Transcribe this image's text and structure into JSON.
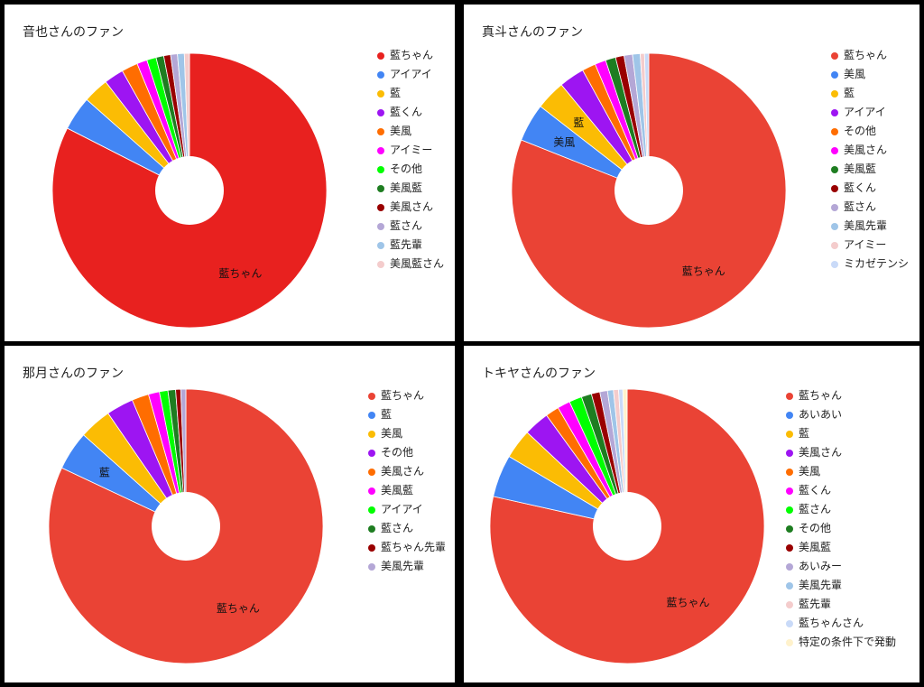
{
  "chart_data": [
    {
      "type": "pie",
      "title": "音也さんのファン",
      "categories": [
        "藍ちゃん",
        "アイアイ",
        "藍",
        "藍くん",
        "美風",
        "アイミー",
        "その他",
        "美風藍",
        "美風さん",
        "藍さん",
        "藍先輩",
        "美風藍さん"
      ],
      "values": [
        82.0,
        4.0,
        3.0,
        2.3,
        1.9,
        1.2,
        1.1,
        0.9,
        0.8,
        0.8,
        0.8,
        0.6
      ],
      "colors": [
        "#e8211f",
        "#4285f4",
        "#fbbc04",
        "#9d15f2",
        "#ff6d01",
        "#ff00ff",
        "#00ff00",
        "#1e7d21",
        "#990000",
        "#b4a7d6",
        "#9fc5e8",
        "#f4cccc"
      ],
      "slice_labels": [
        "藍ちゃん",
        "",
        "",
        "",
        "",
        "",
        "",
        "",
        "",
        "",
        "",
        ""
      ],
      "donut": true,
      "legend_position": "right"
    },
    {
      "type": "pie",
      "title": "真斗さんのファン",
      "categories": [
        "藍ちゃん",
        "美風",
        "藍",
        "アイアイ",
        "その他",
        "美風さん",
        "美風藍",
        "藍くん",
        "藍さん",
        "美風先輩",
        "アイミー",
        "ミカゼテンシ"
      ],
      "values": [
        81.0,
        4.5,
        3.5,
        3.0,
        1.6,
        1.3,
        1.2,
        1.0,
        1.0,
        0.9,
        0.5,
        0.5
      ],
      "colors": [
        "#ea4335",
        "#4285f4",
        "#fbbc04",
        "#9d15f2",
        "#ff6d01",
        "#ff00ff",
        "#1e7d21",
        "#990000",
        "#b4a7d6",
        "#9fc5e8",
        "#f4cccc",
        "#c9daf8"
      ],
      "slice_labels": [
        "藍ちゃん",
        "美風",
        "藍",
        "",
        "",
        "",
        "",
        "",
        "",
        "",
        "",
        ""
      ],
      "donut": true,
      "legend_position": "right"
    },
    {
      "type": "pie",
      "title": "那月さんのファン",
      "categories": [
        "藍ちゃん",
        "藍",
        "美風",
        "その他",
        "美風さん",
        "美風藍",
        "アイアイ",
        "藍さん",
        "藍ちゃん先輩",
        "美風先輩"
      ],
      "values": [
        82.0,
        4.6,
        3.8,
        3.2,
        2.0,
        1.3,
        1.0,
        0.9,
        0.6,
        0.6
      ],
      "colors": [
        "#ea4335",
        "#4285f4",
        "#fbbc04",
        "#9d15f2",
        "#ff6d01",
        "#ff00ff",
        "#00ff00",
        "#1e7d21",
        "#990000",
        "#b4a7d6"
      ],
      "slice_labels": [
        "藍ちゃん",
        "藍",
        "",
        "",
        "",
        "",
        "",
        "",
        "",
        ""
      ],
      "donut": true,
      "legend_position": "right"
    },
    {
      "type": "pie",
      "title": "トキヤさんのファン",
      "categories": [
        "藍ちゃん",
        "あいあい",
        "藍",
        "美風さん",
        "美風",
        "藍くん",
        "藍さん",
        "その他",
        "美風藍",
        "あいみー",
        "美風先輩",
        "藍先輩",
        "藍ちゃんさん",
        "特定の条件下で発動"
      ],
      "values": [
        78.5,
        5.0,
        3.5,
        3.0,
        1.6,
        1.5,
        1.5,
        1.2,
        1.0,
        0.9,
        0.7,
        0.6,
        0.5,
        0.5
      ],
      "colors": [
        "#ea4335",
        "#4285f4",
        "#fbbc04",
        "#9d15f2",
        "#ff6d01",
        "#ff00ff",
        "#00ff00",
        "#1e7d21",
        "#990000",
        "#b4a7d6",
        "#9fc5e8",
        "#f4cccc",
        "#c9daf8",
        "#fff2cc"
      ],
      "slice_labels": [
        "藍ちゃん",
        "",
        "",
        "",
        "",
        "",
        "",
        "",
        "",
        "",
        "",
        "",
        "",
        ""
      ],
      "donut": true,
      "legend_position": "right"
    }
  ]
}
